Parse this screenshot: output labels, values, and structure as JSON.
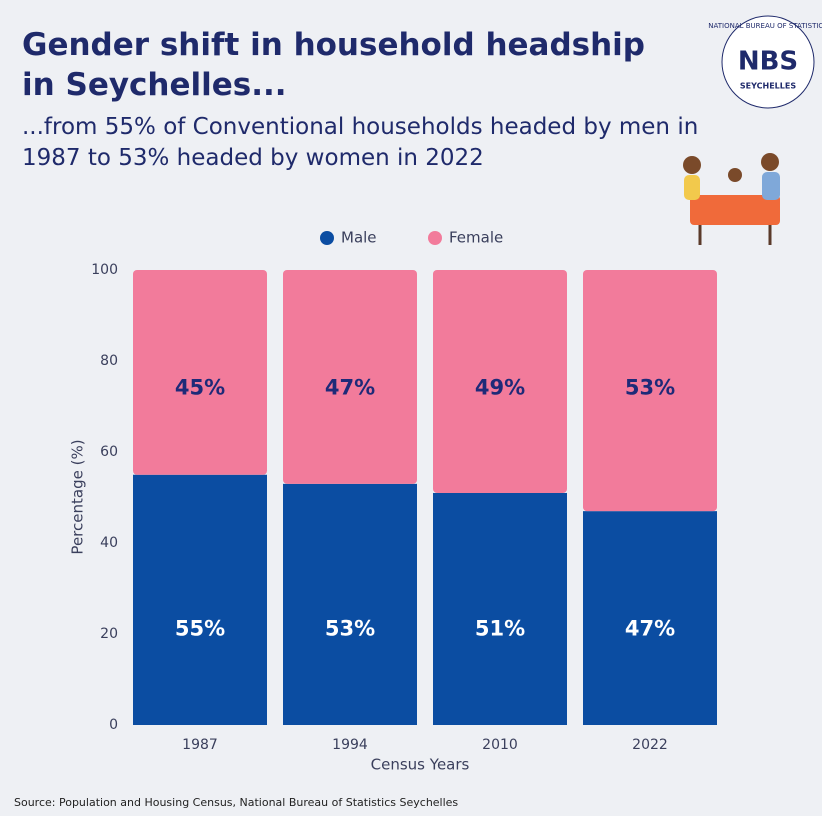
{
  "chart_data": {
    "type": "stacked_bar",
    "title": "Gender shift in household headship in Seychelles...",
    "subtitle": "...from 55% of Conventional households headed by men in 1987 to 53% headed by women in 2022",
    "categories": [
      "1987",
      "1994",
      "2010",
      "2022"
    ],
    "series": [
      {
        "name": "Male",
        "color": "#0b4da2",
        "values": [
          55,
          53,
          51,
          47
        ],
        "value_labels": [
          "55%",
          "53%",
          "51%",
          "47%"
        ]
      },
      {
        "name": "Female",
        "color": "#f27b9b",
        "values": [
          45,
          47,
          49,
          53
        ],
        "value_labels": [
          "45%",
          "47%",
          "49%",
          "53%"
        ]
      }
    ],
    "ylim": [
      0,
      100
    ],
    "yticks": [
      0,
      20,
      40,
      60,
      80,
      100
    ],
    "xlabel": "Census Years",
    "ylabel": "Percentage (%)",
    "legend": "top",
    "source": "Source: Population and Housing Census, National Bureau of Statistics Seychelles"
  },
  "logo": {
    "name": "NBS",
    "org": "NATIONAL BUREAU OF STATISTICS",
    "country": "SEYCHELLES"
  }
}
